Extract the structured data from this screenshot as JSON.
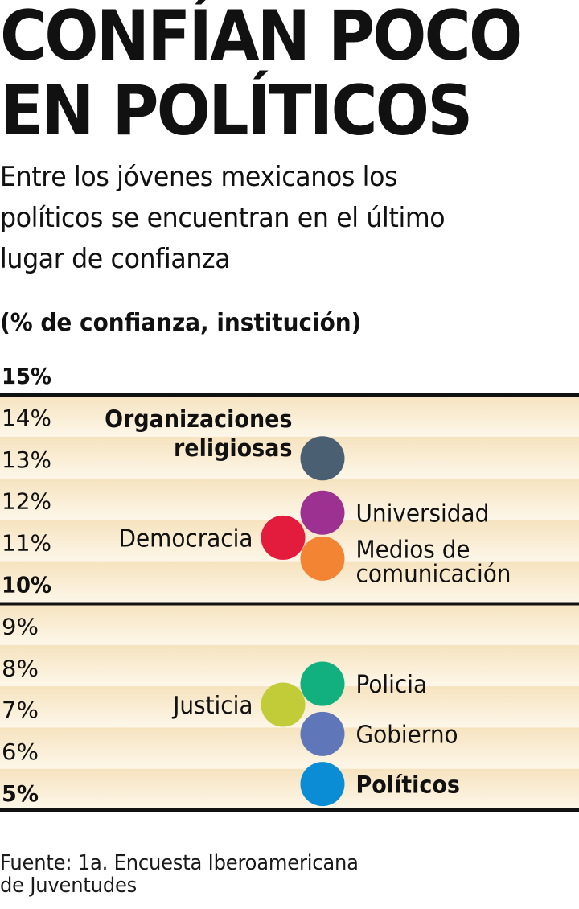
{
  "header": {
    "title_lines": [
      "CONFÍAN POCO",
      "EN POLÍTICOS"
    ],
    "subtitle_lines": [
      "Entre los jóvenes mexicanos los",
      "políticos se encuentran en el último",
      "lugar de confianza"
    ],
    "units": "(% de confianza, institución)"
  },
  "chart_data": {
    "type": "scatter",
    "title": "CONFÍAN POCO EN POLÍTICOS",
    "subtitle": "Entre los jóvenes mexicanos los políticos se encuentran en el último lugar de confianza",
    "ylabel": "(% de confianza, institución)",
    "xlabel": "",
    "ylim": [
      5,
      15
    ],
    "y_ticks": [
      {
        "value": 15,
        "label": "15%",
        "bold": true
      },
      {
        "value": 14,
        "label": "14%",
        "bold": false
      },
      {
        "value": 13,
        "label": "13%",
        "bold": false
      },
      {
        "value": 12,
        "label": "12%",
        "bold": false
      },
      {
        "value": 11,
        "label": "11%",
        "bold": false
      },
      {
        "value": 10,
        "label": "10%",
        "bold": true
      },
      {
        "value": 9,
        "label": "9%",
        "bold": false
      },
      {
        "value": 8,
        "label": "8%",
        "bold": false
      },
      {
        "value": 7,
        "label": "7%",
        "bold": false
      },
      {
        "value": 6,
        "label": "6%",
        "bold": false
      },
      {
        "value": 5,
        "label": "5%",
        "bold": true
      }
    ],
    "band_colors": [
      "#f6e3bf",
      "#fdf7ea"
    ],
    "points": [
      {
        "name": "Organizaciones religiosas",
        "label_lines": [
          "Organizaciones",
          "religiosas"
        ],
        "value": 13.0,
        "column": "main",
        "label_side": "left",
        "bold": true,
        "color": "#4a5f71"
      },
      {
        "name": "Universidad",
        "label_lines": [
          "Universidad"
        ],
        "value": 11.7,
        "column": "main",
        "label_side": "right",
        "bold": false,
        "color": "#9d3191"
      },
      {
        "name": "Democracia",
        "label_lines": [
          "Democracia"
        ],
        "value": 11.1,
        "column": "offset",
        "label_side": "left",
        "bold": false,
        "color": "#e31b3c"
      },
      {
        "name": "Medios de comunicación",
        "label_lines": [
          "Medios de",
          "comunicación"
        ],
        "value": 10.6,
        "column": "main",
        "label_side": "right",
        "bold": false,
        "color": "#f28434"
      },
      {
        "name": "Policia",
        "label_lines": [
          "Policia"
        ],
        "value": 7.6,
        "column": "main",
        "label_side": "right",
        "bold": false,
        "color": "#12b07f"
      },
      {
        "name": "Justicia",
        "label_lines": [
          "Justicia"
        ],
        "value": 7.1,
        "column": "offset",
        "label_side": "left",
        "bold": false,
        "color": "#c2cc39"
      },
      {
        "name": "Gobierno",
        "label_lines": [
          "Gobierno"
        ],
        "value": 6.4,
        "column": "main",
        "label_side": "right",
        "bold": false,
        "color": "#5f77b8"
      },
      {
        "name": "Políticos",
        "label_lines": [
          "Políticos"
        ],
        "value": 5.2,
        "column": "main",
        "label_side": "right",
        "bold": true,
        "color": "#0b8dd5"
      }
    ]
  },
  "footer": {
    "source_lines": [
      "Fuente: 1a. Encuesta Iberoamericana",
      "de Juventudes"
    ]
  }
}
